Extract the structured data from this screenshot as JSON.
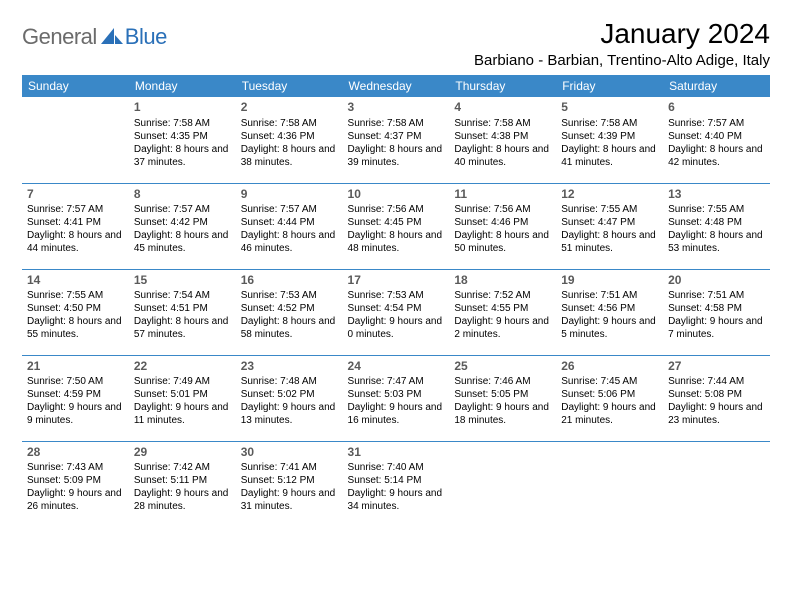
{
  "logo": {
    "general": "General",
    "blue": "Blue"
  },
  "header": {
    "month_title": "January 2024",
    "location": "Barbiano - Barbian, Trentino-Alto Adige, Italy"
  },
  "colors": {
    "header_bg": "#3a88c8",
    "header_text": "#ffffff",
    "row_border": "#3a88c8",
    "daynum": "#5a5a5a",
    "body_text": "#000000",
    "logo_gray": "#6b6b6b",
    "logo_blue": "#2a70b8"
  },
  "day_headers": [
    "Sunday",
    "Monday",
    "Tuesday",
    "Wednesday",
    "Thursday",
    "Friday",
    "Saturday"
  ],
  "weeks": [
    [
      null,
      {
        "n": "1",
        "sr": "7:58 AM",
        "ss": "4:35 PM",
        "dl": "8 hours and 37 minutes."
      },
      {
        "n": "2",
        "sr": "7:58 AM",
        "ss": "4:36 PM",
        "dl": "8 hours and 38 minutes."
      },
      {
        "n": "3",
        "sr": "7:58 AM",
        "ss": "4:37 PM",
        "dl": "8 hours and 39 minutes."
      },
      {
        "n": "4",
        "sr": "7:58 AM",
        "ss": "4:38 PM",
        "dl": "8 hours and 40 minutes."
      },
      {
        "n": "5",
        "sr": "7:58 AM",
        "ss": "4:39 PM",
        "dl": "8 hours and 41 minutes."
      },
      {
        "n": "6",
        "sr": "7:57 AM",
        "ss": "4:40 PM",
        "dl": "8 hours and 42 minutes."
      }
    ],
    [
      {
        "n": "7",
        "sr": "7:57 AM",
        "ss": "4:41 PM",
        "dl": "8 hours and 44 minutes."
      },
      {
        "n": "8",
        "sr": "7:57 AM",
        "ss": "4:42 PM",
        "dl": "8 hours and 45 minutes."
      },
      {
        "n": "9",
        "sr": "7:57 AM",
        "ss": "4:44 PM",
        "dl": "8 hours and 46 minutes."
      },
      {
        "n": "10",
        "sr": "7:56 AM",
        "ss": "4:45 PM",
        "dl": "8 hours and 48 minutes."
      },
      {
        "n": "11",
        "sr": "7:56 AM",
        "ss": "4:46 PM",
        "dl": "8 hours and 50 minutes."
      },
      {
        "n": "12",
        "sr": "7:55 AM",
        "ss": "4:47 PM",
        "dl": "8 hours and 51 minutes."
      },
      {
        "n": "13",
        "sr": "7:55 AM",
        "ss": "4:48 PM",
        "dl": "8 hours and 53 minutes."
      }
    ],
    [
      {
        "n": "14",
        "sr": "7:55 AM",
        "ss": "4:50 PM",
        "dl": "8 hours and 55 minutes."
      },
      {
        "n": "15",
        "sr": "7:54 AM",
        "ss": "4:51 PM",
        "dl": "8 hours and 57 minutes."
      },
      {
        "n": "16",
        "sr": "7:53 AM",
        "ss": "4:52 PM",
        "dl": "8 hours and 58 minutes."
      },
      {
        "n": "17",
        "sr": "7:53 AM",
        "ss": "4:54 PM",
        "dl": "9 hours and 0 minutes."
      },
      {
        "n": "18",
        "sr": "7:52 AM",
        "ss": "4:55 PM",
        "dl": "9 hours and 2 minutes."
      },
      {
        "n": "19",
        "sr": "7:51 AM",
        "ss": "4:56 PM",
        "dl": "9 hours and 5 minutes."
      },
      {
        "n": "20",
        "sr": "7:51 AM",
        "ss": "4:58 PM",
        "dl": "9 hours and 7 minutes."
      }
    ],
    [
      {
        "n": "21",
        "sr": "7:50 AM",
        "ss": "4:59 PM",
        "dl": "9 hours and 9 minutes."
      },
      {
        "n": "22",
        "sr": "7:49 AM",
        "ss": "5:01 PM",
        "dl": "9 hours and 11 minutes."
      },
      {
        "n": "23",
        "sr": "7:48 AM",
        "ss": "5:02 PM",
        "dl": "9 hours and 13 minutes."
      },
      {
        "n": "24",
        "sr": "7:47 AM",
        "ss": "5:03 PM",
        "dl": "9 hours and 16 minutes."
      },
      {
        "n": "25",
        "sr": "7:46 AM",
        "ss": "5:05 PM",
        "dl": "9 hours and 18 minutes."
      },
      {
        "n": "26",
        "sr": "7:45 AM",
        "ss": "5:06 PM",
        "dl": "9 hours and 21 minutes."
      },
      {
        "n": "27",
        "sr": "7:44 AM",
        "ss": "5:08 PM",
        "dl": "9 hours and 23 minutes."
      }
    ],
    [
      {
        "n": "28",
        "sr": "7:43 AM",
        "ss": "5:09 PM",
        "dl": "9 hours and 26 minutes."
      },
      {
        "n": "29",
        "sr": "7:42 AM",
        "ss": "5:11 PM",
        "dl": "9 hours and 28 minutes."
      },
      {
        "n": "30",
        "sr": "7:41 AM",
        "ss": "5:12 PM",
        "dl": "9 hours and 31 minutes."
      },
      {
        "n": "31",
        "sr": "7:40 AM",
        "ss": "5:14 PM",
        "dl": "9 hours and 34 minutes."
      },
      null,
      null,
      null
    ]
  ],
  "labels": {
    "sunrise": "Sunrise:",
    "sunset": "Sunset:",
    "daylight": "Daylight:"
  }
}
